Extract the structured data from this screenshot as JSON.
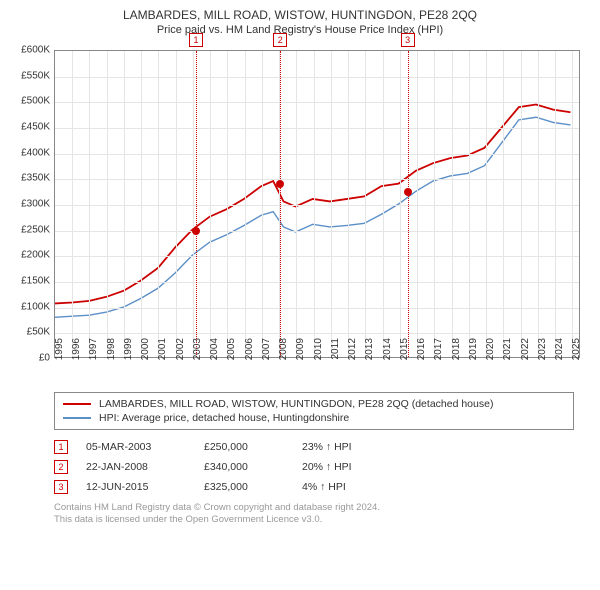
{
  "title": "LAMBARDES, MILL ROAD, WISTOW, HUNTINGDON, PE28 2QQ",
  "subtitle": "Price paid vs. HM Land Registry's House Price Index (HPI)",
  "chart": {
    "type": "line",
    "background_color": "#ffffff",
    "grid_color": "#e5e5e5",
    "axis_color": "#888888",
    "label_fontsize": 10,
    "xlim": [
      1995,
      2025.5
    ],
    "ylim": [
      0,
      600000
    ],
    "ytick_step": 50000,
    "yticks": [
      "£0",
      "£50K",
      "£100K",
      "£150K",
      "£200K",
      "£250K",
      "£300K",
      "£350K",
      "£400K",
      "£450K",
      "£500K",
      "£550K",
      "£600K"
    ],
    "xticks": [
      1995,
      1996,
      1997,
      1998,
      1999,
      2000,
      2001,
      2002,
      2003,
      2004,
      2005,
      2006,
      2007,
      2008,
      2009,
      2010,
      2011,
      2012,
      2013,
      2014,
      2015,
      2016,
      2017,
      2018,
      2019,
      2020,
      2021,
      2022,
      2023,
      2024,
      2025
    ],
    "series": [
      {
        "name": "LAMBARDES, MILL ROAD, WISTOW, HUNTINGDON, PE28 2QQ (detached house)",
        "color": "#cc0000",
        "line_width": 1.8,
        "data_x": [
          1995,
          1996,
          1997,
          1998,
          1999,
          2000,
          2001,
          2002,
          2003,
          2004,
          2005,
          2006,
          2007,
          2007.7,
          2008.3,
          2009,
          2010,
          2011,
          2012,
          2013,
          2014,
          2015,
          2016,
          2017,
          2018,
          2019,
          2020,
          2021,
          2022,
          2023,
          2024,
          2025
        ],
        "data_y": [
          105000,
          107000,
          110000,
          118000,
          130000,
          150000,
          175000,
          215000,
          250000,
          275000,
          290000,
          310000,
          335000,
          345000,
          305000,
          295000,
          310000,
          305000,
          310000,
          315000,
          335000,
          340000,
          365000,
          380000,
          390000,
          395000,
          410000,
          450000,
          490000,
          495000,
          485000,
          480000
        ]
      },
      {
        "name": "HPI: Average price, detached house, Huntingdonshire",
        "color": "#5b8fc7",
        "line_width": 1.4,
        "data_x": [
          1995,
          1996,
          1997,
          1998,
          1999,
          2000,
          2001,
          2002,
          2003,
          2004,
          2005,
          2006,
          2007,
          2007.7,
          2008.3,
          2009,
          2010,
          2011,
          2012,
          2013,
          2014,
          2015,
          2016,
          2017,
          2018,
          2019,
          2020,
          2021,
          2022,
          2023,
          2024,
          2025
        ],
        "data_y": [
          78000,
          80000,
          82000,
          88000,
          98000,
          115000,
          135000,
          165000,
          200000,
          225000,
          240000,
          258000,
          278000,
          285000,
          255000,
          245000,
          260000,
          255000,
          258000,
          262000,
          280000,
          300000,
          325000,
          345000,
          355000,
          360000,
          375000,
          420000,
          465000,
          470000,
          460000,
          455000
        ]
      }
    ],
    "event_lines": [
      {
        "num": "1",
        "x": 2003.18,
        "color": "#cc0000"
      },
      {
        "num": "2",
        "x": 2008.06,
        "color": "#cc0000"
      },
      {
        "num": "3",
        "x": 2015.45,
        "color": "#cc0000"
      }
    ],
    "point_markers": [
      {
        "x": 2003.18,
        "y": 250000,
        "color": "#cc0000"
      },
      {
        "x": 2008.06,
        "y": 340000,
        "color": "#cc0000"
      },
      {
        "x": 2015.45,
        "y": 325000,
        "color": "#cc0000"
      }
    ]
  },
  "legend": {
    "items": [
      {
        "color": "#cc0000",
        "label": "LAMBARDES, MILL ROAD, WISTOW, HUNTINGDON, PE28 2QQ (detached house)"
      },
      {
        "color": "#5b8fc7",
        "label": "HPI: Average price, detached house, Huntingdonshire"
      }
    ]
  },
  "events": [
    {
      "num": "1",
      "color": "#cc0000",
      "date": "05-MAR-2003",
      "price": "£250,000",
      "pct": "23% ↑ HPI"
    },
    {
      "num": "2",
      "color": "#cc0000",
      "date": "22-JAN-2008",
      "price": "£340,000",
      "pct": "20% ↑ HPI"
    },
    {
      "num": "3",
      "color": "#cc0000",
      "date": "12-JUN-2015",
      "price": "£325,000",
      "pct": "4% ↑ HPI"
    }
  ],
  "footer_line1": "Contains HM Land Registry data © Crown copyright and database right 2024.",
  "footer_line2": "This data is licensed under the Open Government Licence v3.0."
}
